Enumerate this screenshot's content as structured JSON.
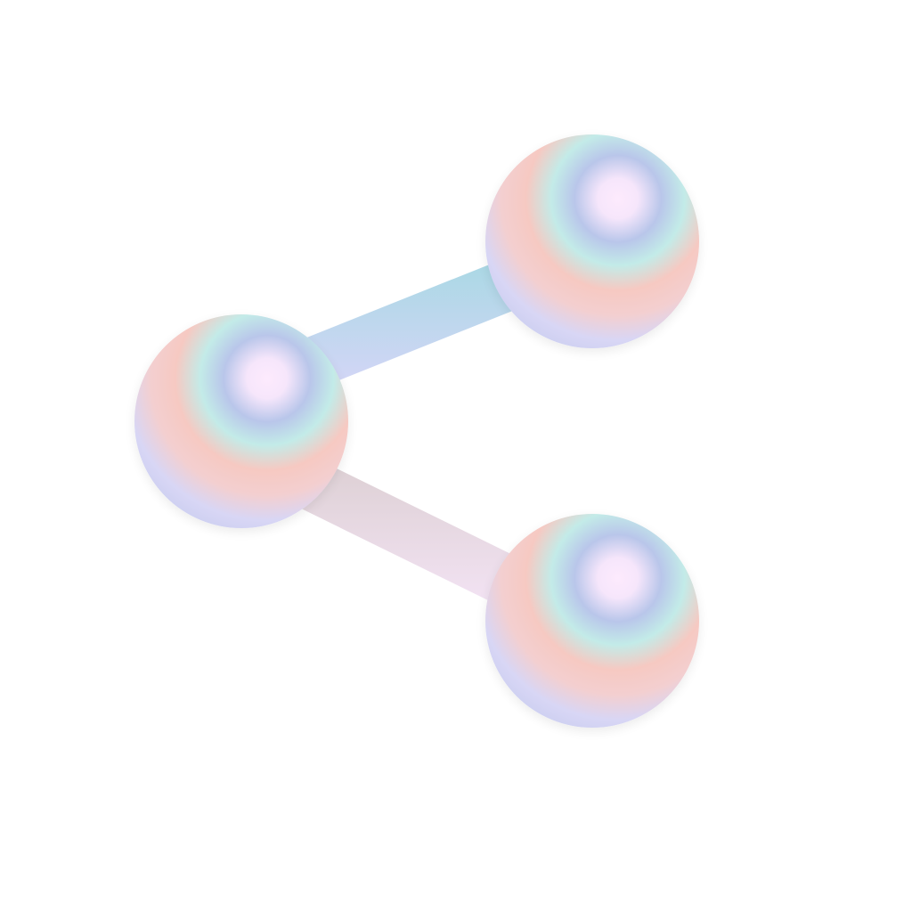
{
  "icon": {
    "name": "share-icon",
    "description_type": "3d-iridescent-share-symbol"
  },
  "colors": {
    "background": "#ffffff",
    "sphere_highlight": "#fdeafd",
    "sphere_blue": "#b9c6ea",
    "sphere_aqua": "#c3ebe8",
    "sphere_peach": "#f6c9c2",
    "sphere_lavender": "#d8d6f5",
    "rod_top_start": "#b4dce6",
    "rod_top_end": "#cdd4f5",
    "rod_bottom_start": "#f0e0f0",
    "rod_bottom_end": "#dcd2d8"
  }
}
